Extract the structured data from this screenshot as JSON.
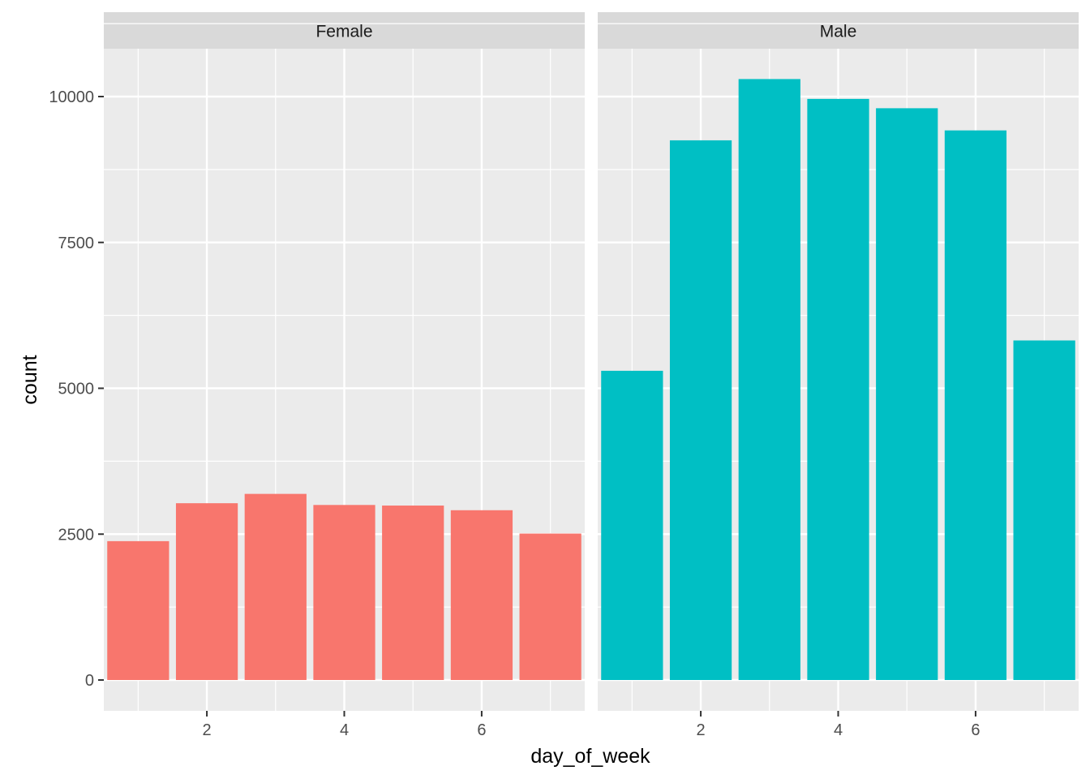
{
  "chart_data": {
    "type": "bar",
    "facet_by": "gender",
    "xlabel": "day_of_week",
    "ylabel": "count",
    "xlim": [
      0.5,
      7.5
    ],
    "ylim": [
      0,
      10300
    ],
    "x_ticks": [
      2,
      4,
      6
    ],
    "y_ticks": [
      0,
      2500,
      5000,
      7500,
      10000
    ],
    "grid": true,
    "panels": [
      {
        "strip": "Female",
        "color": "#F8766D",
        "x": [
          1,
          2,
          3,
          4,
          5,
          6,
          7
        ],
        "values": [
          2380,
          3030,
          3190,
          3000,
          2990,
          2910,
          2510
        ]
      },
      {
        "strip": "Male",
        "color": "#00BFC4",
        "x": [
          1,
          2,
          3,
          4,
          5,
          6,
          7
        ],
        "values": [
          5300,
          9250,
          10300,
          9960,
          9800,
          9420,
          5820
        ]
      }
    ]
  }
}
